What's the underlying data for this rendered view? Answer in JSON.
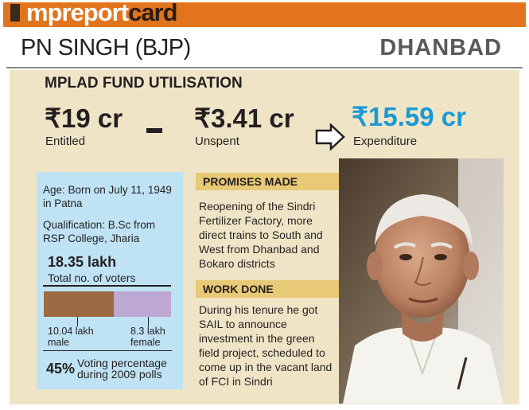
{
  "banner": {
    "title_part1": "mp",
    "title_part2": "report",
    "title_part3": "card"
  },
  "mp": {
    "name": "PN SINGH (BJP)",
    "constituency": "DHANBAD"
  },
  "fund": {
    "title": "MPLAD FUND UTILISATION",
    "entitled": {
      "amount": "₹19 cr",
      "label": "Entitled"
    },
    "unspent": {
      "amount": "₹3.41 cr",
      "label": "Unspent"
    },
    "expenditure": {
      "amount": "₹15.59 cr",
      "label": "Expenditure"
    }
  },
  "profile": {
    "age": "Age: Born on July 11, 1949 in Patna",
    "qualification": "Qualification: B.Sc from RSP College, Jharia"
  },
  "voters": {
    "total": "18.35 lakh",
    "total_label": "Total no. of voters",
    "male_value": "10.04 lakh",
    "male_label": "male",
    "female_value": "8.3 lakh",
    "female_label": "female",
    "male_lakh": 10.04,
    "female_lakh": 8.3,
    "voting_pct": "45%",
    "voting_label": "Voting percentage during 2009 polls"
  },
  "promises": {
    "heading": "PROMISES MADE",
    "text": "Reopening of the Sindri Fertilizer Factory, more direct trains to South and West from Dhanbad and Bokaro districts"
  },
  "work": {
    "heading": "WORK DONE",
    "text": "During his tenure he got SAIL to announce investment in the green field project, scheduled to come up in the vacant land of FCI in Sindri"
  },
  "colors": {
    "banner": "#e2741d",
    "panel": "#efe5c6",
    "info_box": "#bfe3f4",
    "section_head": "#e7c976",
    "expenditure": "#1a9ad6",
    "male_bar": "#9b6a43",
    "female_bar": "#bca8d3"
  }
}
